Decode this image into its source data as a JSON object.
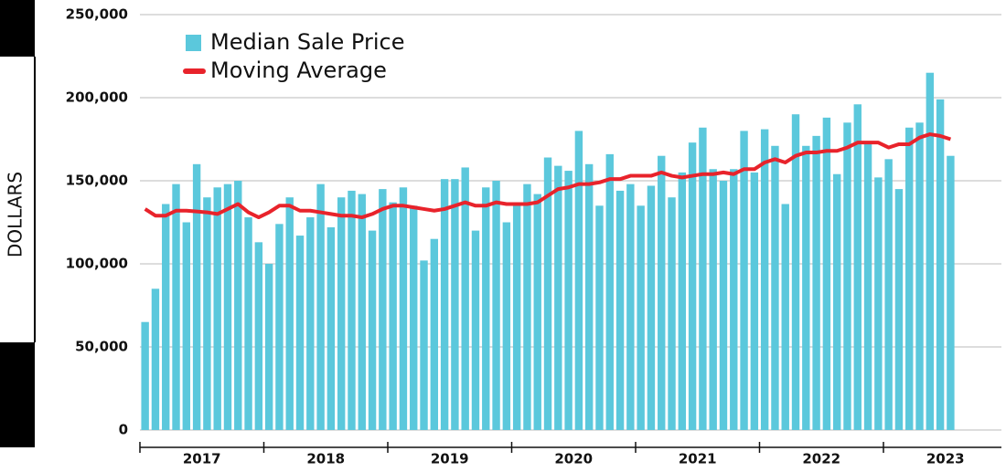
{
  "chart_data": {
    "type": "bar_line",
    "y_label": "DOLLARS",
    "year_labels": [
      "2017",
      "2018",
      "2019",
      "2020",
      "2021",
      "2022",
      "2023"
    ],
    "ylim": [
      0,
      250000
    ],
    "yticks": [
      {
        "value": 0,
        "label": "0"
      },
      {
        "value": 50000,
        "label": "50,000"
      },
      {
        "value": 100000,
        "label": "100,000"
      },
      {
        "value": 150000,
        "label": "150,000"
      },
      {
        "value": 200000,
        "label": "200,000"
      },
      {
        "value": 250000,
        "label": "250,000"
      }
    ],
    "grid": true,
    "series": [
      {
        "name": "Median Sale Price",
        "kind": "bar",
        "color": "#5bc8dc",
        "values": [
          65000,
          85000,
          136000,
          148000,
          125000,
          160000,
          140000,
          146000,
          148000,
          150000,
          128000,
          113000,
          100000,
          124000,
          140000,
          117000,
          128000,
          148000,
          122000,
          140000,
          144000,
          142000,
          120000,
          145000,
          137000,
          146000,
          135000,
          102000,
          115000,
          151000,
          151000,
          158000,
          120000,
          146000,
          150000,
          125000,
          135000,
          148000,
          142000,
          164000,
          159000,
          156000,
          180000,
          160000,
          135000,
          166000,
          144000,
          148000,
          135000,
          147000,
          165000,
          140000,
          155000,
          173000,
          182000,
          157000,
          150000,
          157000,
          180000,
          155000,
          181000,
          171000,
          136000,
          190000,
          171000,
          177000,
          188000,
          154000,
          185000,
          196000,
          172000,
          152000,
          163000,
          145000,
          182000,
          185000,
          215000,
          199000,
          165000
        ]
      },
      {
        "name": "Moving Average",
        "kind": "line",
        "color": "#e8232b",
        "values": [
          133000,
          129000,
          129000,
          132000,
          132000,
          131500,
          131000,
          130000,
          133000,
          136000,
          131000,
          128000,
          131000,
          135000,
          135000,
          132000,
          132000,
          131000,
          130000,
          129000,
          129000,
          128000,
          130000,
          133000,
          135000,
          135000,
          134000,
          133000,
          132000,
          133000,
          135000,
          137000,
          135000,
          135000,
          137000,
          136000,
          136000,
          136000,
          137000,
          141000,
          145000,
          146000,
          148000,
          148000,
          149000,
          151000,
          151000,
          153000,
          153000,
          153000,
          155000,
          153000,
          152000,
          153000,
          154000,
          154000,
          155000,
          154000,
          157000,
          157000,
          161000,
          163000,
          161000,
          165000,
          167000,
          167000,
          168000,
          168000,
          170000,
          173000,
          173000,
          173000,
          170000,
          172000,
          172000,
          176000,
          178000,
          177000,
          175000
        ]
      }
    ]
  }
}
